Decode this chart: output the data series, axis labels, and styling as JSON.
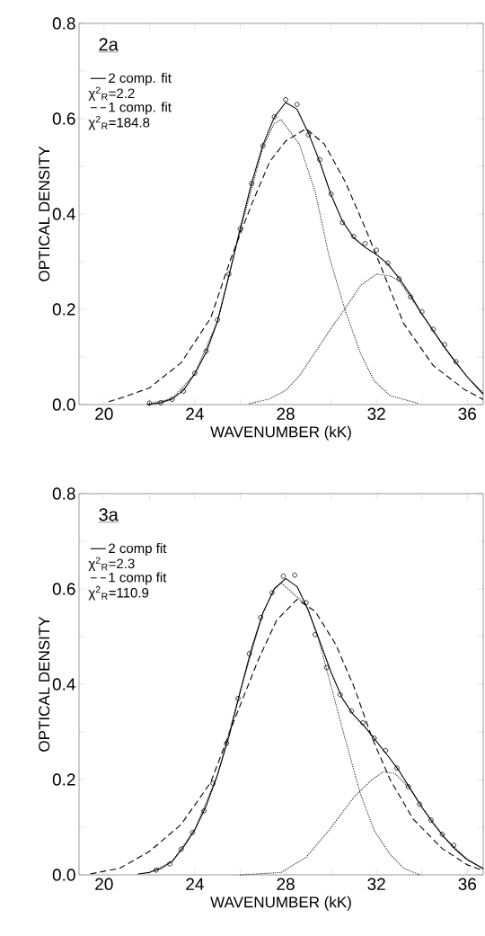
{
  "chart_data": [
    {
      "type": "line",
      "xlabel": "WAVENUMBER (kK)",
      "ylabel": "OPTICAL DENSITY",
      "xlim": [
        18.9,
        36.7
      ],
      "ylim": [
        0,
        0.8
      ],
      "xticks": [
        20,
        {
          "value": 22,
          "label": null
        },
        24,
        {
          "value": 26,
          "label": null
        },
        28,
        {
          "value": 30,
          "label": null
        },
        32,
        {
          "value": 34,
          "label": null
        },
        36
      ],
      "yticks": [
        {
          "value": 0,
          "label": "0.0"
        },
        {
          "value": 0.1,
          "label": null
        },
        {
          "value": 0.2,
          "label": "0.2"
        },
        {
          "value": 0.3,
          "label": null
        },
        {
          "value": 0.4,
          "label": "0.4"
        },
        {
          "value": 0.5,
          "label": null
        },
        {
          "value": 0.6,
          "label": "0.6"
        },
        {
          "value": 0.7,
          "label": null
        },
        {
          "value": 0.8,
          "label": "0.8"
        }
      ],
      "legend": "top left",
      "annotations": [
        "2a",
        "χ$^{2}$$_{R}$=2.2",
        "χ$^{2}$$_{R}$=184.8"
      ],
      "series": [
        {
          "type": "scatter",
          "marker": "circle",
          "color": "#000000",
          "x": [
            22,
            22.5,
            23,
            23.5,
            24,
            24.5,
            25,
            25.5,
            26,
            26.5,
            27,
            27.5,
            28,
            28.5,
            29,
            29.5,
            30,
            30.5,
            31,
            31.5,
            32,
            32.5,
            33,
            33.5,
            34,
            34.5,
            35,
            35.5
          ],
          "values": [
            0.003,
            0.004,
            0.011,
            0.028,
            0.066,
            0.112,
            0.178,
            0.274,
            0.369,
            0.464,
            0.543,
            0.604,
            0.64,
            0.63,
            0.566,
            0.514,
            0.442,
            0.382,
            0.353,
            0.338,
            0.324,
            0.297,
            0.264,
            0.226,
            0.195,
            0.158,
            0.126,
            0.09
          ]
        },
        {
          "type": "line",
          "name": "2 comp. fit",
          "line_style": "solid",
          "color": "#000000",
          "x": [
            21.9,
            22.5,
            23,
            23.5,
            24,
            24.5,
            25,
            25.5,
            26,
            26.5,
            27,
            27.5,
            28,
            28.5,
            29,
            29.5,
            30,
            30.5,
            31,
            31.5,
            32,
            32.5,
            33,
            33.5,
            34,
            34.5,
            35,
            35.5,
            36,
            36.5,
            36.7
          ],
          "values": [
            0.0,
            0.004,
            0.012,
            0.03,
            0.065,
            0.11,
            0.175,
            0.27,
            0.37,
            0.465,
            0.545,
            0.603,
            0.634,
            0.62,
            0.57,
            0.51,
            0.44,
            0.385,
            0.35,
            0.33,
            0.315,
            0.295,
            0.265,
            0.23,
            0.19,
            0.155,
            0.12,
            0.088,
            0.058,
            0.032,
            0.022
          ]
        },
        {
          "type": "line",
          "name": "1 comp. fit",
          "line_style": "dashed",
          "color": "#000000",
          "x": [
            20.2,
            20.7,
            22.0,
            23.4,
            24.7,
            25.6,
            26.5,
            27.3,
            28.0,
            28.9,
            29.7,
            30.6,
            31.5,
            32.2,
            33.2,
            34.5,
            35.9,
            36.7
          ],
          "values": [
            0.006,
            0.013,
            0.035,
            0.088,
            0.182,
            0.308,
            0.42,
            0.51,
            0.553,
            0.579,
            0.547,
            0.47,
            0.371,
            0.289,
            0.17,
            0.082,
            0.031,
            0.011
          ]
        },
        {
          "type": "line",
          "line_style": "dotted",
          "color": "#000000",
          "x": [
            22,
            23,
            24,
            25,
            26,
            27,
            27.5,
            27.8,
            28.6,
            29.3,
            29.9,
            30.6,
            31.3,
            31.9,
            32.6,
            33.8
          ],
          "values": [
            0.003,
            0.012,
            0.065,
            0.175,
            0.365,
            0.54,
            0.59,
            0.598,
            0.547,
            0.447,
            0.314,
            0.201,
            0.107,
            0.05,
            0.019,
            0.003
          ]
        },
        {
          "type": "line",
          "line_style": "dotted",
          "color": "#000000",
          "x": [
            26.4,
            27.3,
            28,
            28.6,
            29.3,
            30,
            30.6,
            31.3,
            32,
            32.6,
            33,
            34,
            35,
            36,
            36.7
          ],
          "values": [
            0.002,
            0.012,
            0.03,
            0.06,
            0.11,
            0.16,
            0.2,
            0.25,
            0.274,
            0.27,
            0.26,
            0.19,
            0.12,
            0.058,
            0.025
          ]
        }
      ]
    },
    {
      "type": "line",
      "xlabel": "WAVENUMBER (kK)",
      "ylabel": "OPTICAL DENSITY",
      "xlim": [
        18.9,
        36.7
      ],
      "ylim": [
        0,
        0.8
      ],
      "xticks": [
        20,
        {
          "value": 22,
          "label": null
        },
        24,
        {
          "value": 26,
          "label": null
        },
        28,
        {
          "value": 30,
          "label": null
        },
        32,
        {
          "value": 34,
          "label": null
        },
        36
      ],
      "yticks": [
        {
          "value": 0,
          "label": "0.0"
        },
        {
          "value": 0.1,
          "label": null
        },
        {
          "value": 0.2,
          "label": "0.2"
        },
        {
          "value": 0.3,
          "label": null
        },
        {
          "value": 0.4,
          "label": "0.4"
        },
        {
          "value": 0.5,
          "label": null
        },
        {
          "value": 0.6,
          "label": "0.6"
        },
        {
          "value": 0.7,
          "label": null
        },
        {
          "value": 0.8,
          "label": "0.8"
        }
      ],
      "legend": "top left",
      "annotations": [
        "3a",
        "χ$^{2}$$_{R}$=2.3",
        "χ$^{2}$$_{R}$=110.9"
      ],
      "series": [
        {
          "type": "scatter",
          "marker": "circle",
          "color": "#000000",
          "x": [
            22.3,
            22.9,
            23.4,
            23.9,
            24.4,
            24.8,
            25.4,
            25.9,
            26.4,
            26.9,
            27.4,
            27.9,
            28.4,
            28.9,
            29.3,
            29.8,
            30.4,
            30.9,
            31.4,
            31.9,
            32.4,
            32.9,
            33.4,
            33.9,
            34.4,
            34.9,
            35.4
          ],
          "values": [
            0.01,
            0.023,
            0.054,
            0.089,
            0.134,
            0.192,
            0.276,
            0.37,
            0.464,
            0.54,
            0.592,
            0.627,
            0.629,
            0.571,
            0.504,
            0.435,
            0.378,
            0.344,
            0.319,
            0.287,
            0.261,
            0.224,
            0.185,
            0.148,
            0.115,
            0.085,
            0.062
          ]
        },
        {
          "type": "line",
          "name": "2 comp fit",
          "line_style": "solid",
          "color": "#000000",
          "x": [
            21.5,
            22,
            22.5,
            23,
            23.5,
            24,
            24.5,
            25,
            25.5,
            26,
            26.5,
            27,
            27.5,
            28,
            28.5,
            29,
            29.5,
            30,
            30.5,
            31,
            31.5,
            32,
            32.5,
            33,
            33.5,
            34,
            34.5,
            35,
            35.5,
            36,
            36.7
          ],
          "values": [
            0.002,
            0.005,
            0.013,
            0.028,
            0.058,
            0.095,
            0.145,
            0.21,
            0.29,
            0.385,
            0.475,
            0.55,
            0.6,
            0.622,
            0.605,
            0.555,
            0.49,
            0.425,
            0.37,
            0.335,
            0.31,
            0.28,
            0.25,
            0.218,
            0.18,
            0.142,
            0.108,
            0.078,
            0.052,
            0.032,
            0.013
          ]
        },
        {
          "type": "line",
          "name": "1 comp fit",
          "line_style": "dashed",
          "color": "#000000",
          "x": [
            19.4,
            20.7,
            22.0,
            23.4,
            24.7,
            25.7,
            26.8,
            27.6,
            28.5,
            29.3,
            30.2,
            31.0,
            31.8,
            32.6,
            33.6,
            34.9,
            36.0,
            36.7
          ],
          "values": [
            0.002,
            0.014,
            0.049,
            0.106,
            0.194,
            0.32,
            0.452,
            0.534,
            0.578,
            0.553,
            0.484,
            0.396,
            0.288,
            0.2,
            0.118,
            0.055,
            0.021,
            0.009
          ]
        },
        {
          "type": "line",
          "line_style": "dotted",
          "color": "#000000",
          "x": [
            22,
            23,
            24,
            25,
            26,
            27,
            27.5,
            27.8,
            28.9,
            29.4,
            29.9,
            30.6,
            31.3,
            31.9,
            32.6,
            33.2,
            33.9
          ],
          "values": [
            0.005,
            0.028,
            0.095,
            0.21,
            0.385,
            0.55,
            0.6,
            0.613,
            0.566,
            0.503,
            0.414,
            0.289,
            0.169,
            0.093,
            0.043,
            0.014,
            0.0
          ]
        },
        {
          "type": "line",
          "line_style": "dotted",
          "color": "#000000",
          "x": [
            26.0,
            27.8,
            28.9,
            29.9,
            31.0,
            31.8,
            32.3,
            32.8,
            33.5,
            34,
            35,
            36,
            36.7
          ],
          "values": [
            0.0,
            0.005,
            0.037,
            0.093,
            0.163,
            0.2,
            0.216,
            0.213,
            0.18,
            0.142,
            0.078,
            0.032,
            0.013
          ]
        }
      ]
    }
  ]
}
